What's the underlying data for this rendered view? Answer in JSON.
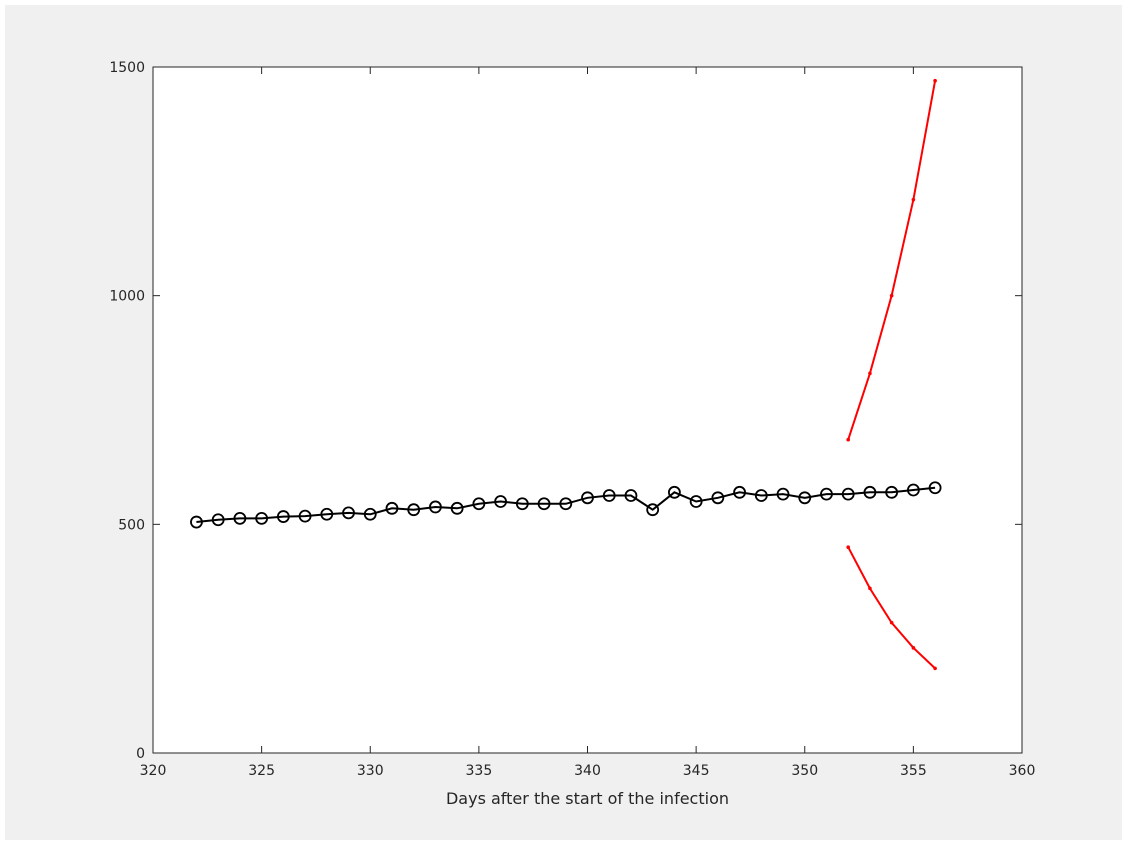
{
  "chart_data": {
    "type": "line",
    "title": "",
    "xlabel": "Days after the start of the infection",
    "ylabel": "",
    "xlim": [
      320,
      360
    ],
    "ylim": [
      0,
      1500
    ],
    "xticks": [
      320,
      325,
      330,
      335,
      340,
      345,
      350,
      355,
      360
    ],
    "yticks": [
      0,
      500,
      1000,
      1500
    ],
    "grid": false,
    "legend": "none",
    "series": [
      {
        "color": "#000000",
        "marker": "circle",
        "x": [
          322,
          323,
          324,
          325,
          326,
          327,
          328,
          329,
          330,
          331,
          332,
          333,
          334,
          335,
          336,
          337,
          338,
          339,
          340,
          341,
          342,
          343,
          344,
          345,
          346,
          347,
          348,
          349,
          350,
          351,
          352,
          353,
          354,
          355,
          356
        ],
        "y": [
          505,
          510,
          513,
          513,
          517,
          518,
          522,
          525,
          522,
          535,
          532,
          538,
          535,
          545,
          550,
          545,
          545,
          545,
          558,
          563,
          563,
          532,
          570,
          550,
          558,
          570,
          563,
          566,
          558,
          566,
          566,
          570,
          570,
          575,
          580
        ]
      },
      {
        "color": "#ff0000",
        "marker": "dot",
        "x": [
          352,
          353,
          354,
          355,
          356
        ],
        "y": [
          685,
          830,
          1000,
          1210,
          1470
        ]
      },
      {
        "color": "#ff0000",
        "marker": "dot",
        "x": [
          352,
          353,
          354,
          355,
          356
        ],
        "y": [
          450,
          360,
          285,
          230,
          185
        ]
      }
    ]
  }
}
